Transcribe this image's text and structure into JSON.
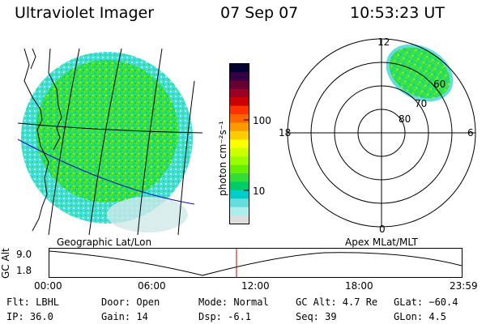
{
  "header": {
    "instrument": "Ultraviolet Imager",
    "date": "07 Sep 07",
    "time": "10:53:23 UT"
  },
  "colorbar": {
    "unit_label": "photon cm⁻²s⁻¹",
    "ticks": [
      "100",
      "10"
    ],
    "colors": [
      "#000033",
      "#330044",
      "#660033",
      "#990022",
      "#cc0000",
      "#ff3300",
      "#ff6600",
      "#ff9900",
      "#ffcc00",
      "#ffff00",
      "#ccff00",
      "#99ff00",
      "#66ee00",
      "#33dd33",
      "#00cc66",
      "#00cccc",
      "#66dddd",
      "#aaeeee",
      "#dddddd"
    ]
  },
  "left_map": {
    "caption": "Geographic Lat/Lon"
  },
  "polar_plot": {
    "caption": "Apex MLat/MLT",
    "mlt_labels": {
      "top": "12",
      "left": "18",
      "right": "6",
      "bottom": "0"
    },
    "lat_labels": [
      "80",
      "70",
      "60"
    ]
  },
  "altitude_plot": {
    "ylabel": "GC Alt",
    "yticks": [
      "9.0",
      "1.8"
    ],
    "xticks": [
      "00:00",
      "06:00",
      "12:00",
      "18:00",
      "23:59"
    ]
  },
  "info": {
    "filter": "Flt: LBHL",
    "ip": "IP: 36.0",
    "door": "Door: Open",
    "gain": "Gain: 14",
    "mode": "Mode: Normal",
    "dsp": "Dsp:    -6.1",
    "gc_alt": "GC Alt: 4.7 Re",
    "seq": "Seq: 39",
    "glat": "GLat: −60.4",
    "glon": "GLon:     4.5"
  }
}
